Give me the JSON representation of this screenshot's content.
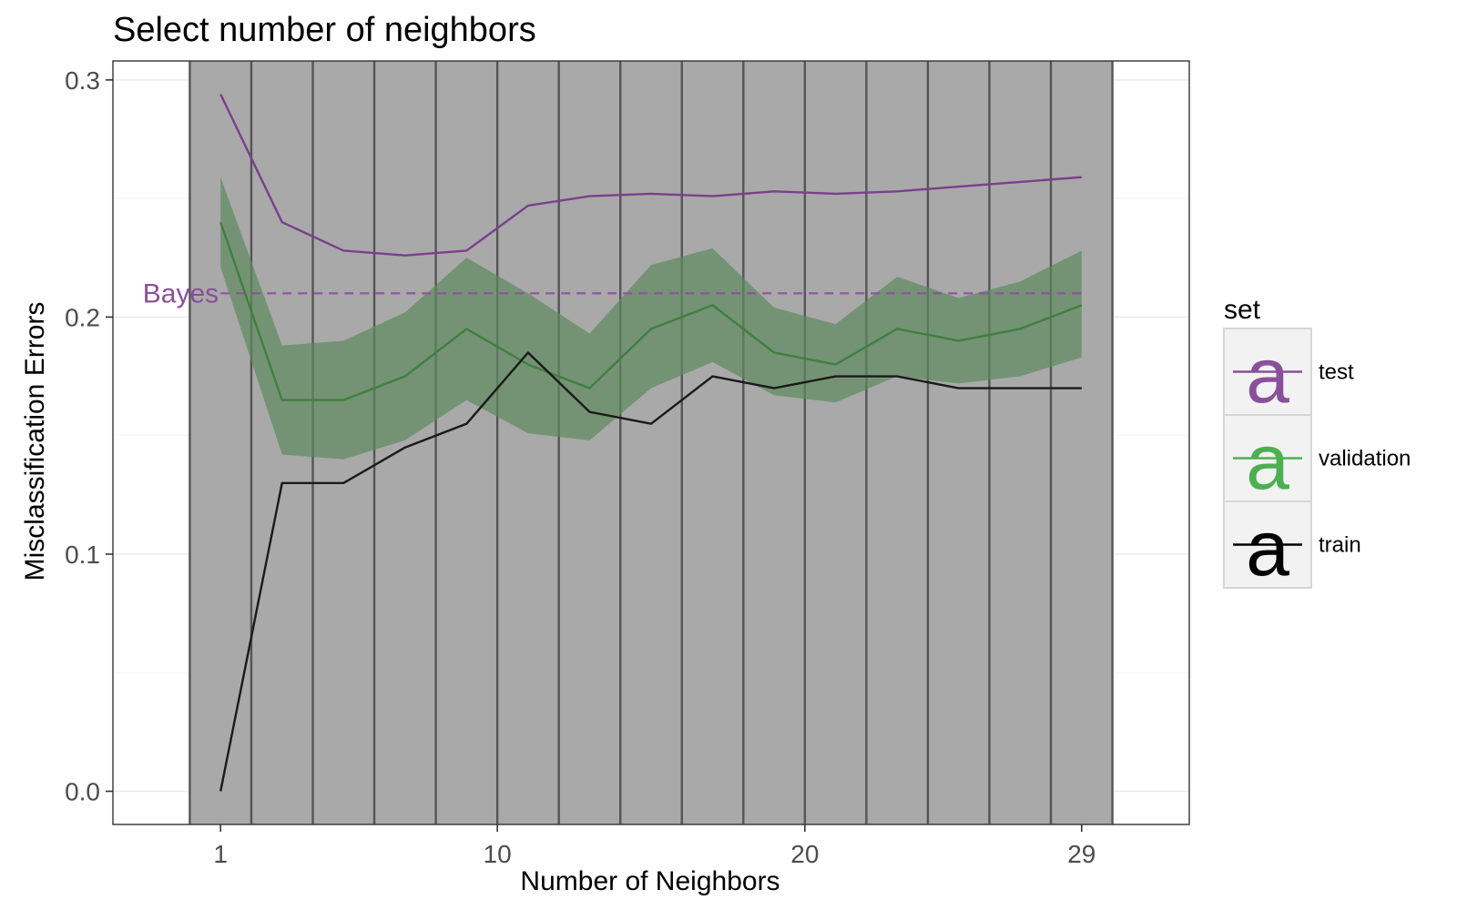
{
  "chart_data": {
    "type": "line",
    "title": "Select number of neighbors",
    "xlabel": "Number of Neighbors",
    "ylabel": "Misclassification Errors",
    "xlim": [
      -2.5,
      32.5
    ],
    "ylim": [
      -0.014,
      0.308
    ],
    "x_ticks": [
      1,
      10,
      20,
      29
    ],
    "y_ticks": [
      0.0,
      0.1,
      0.2,
      0.3
    ],
    "y_tick_labels": [
      "0.0",
      "0.1",
      "0.2",
      "0.3"
    ],
    "grid": true,
    "x": [
      1,
      3,
      5,
      7,
      9,
      11,
      13,
      15,
      17,
      19,
      21,
      23,
      25,
      27,
      29
    ],
    "series": [
      {
        "name": "test",
        "color": "#7b3f8c",
        "values": [
          0.294,
          0.24,
          0.228,
          0.226,
          0.228,
          0.247,
          0.251,
          0.252,
          0.251,
          0.253,
          0.252,
          0.253,
          0.255,
          0.257,
          0.259
        ]
      },
      {
        "name": "validation",
        "color": "#3f7f3f",
        "values": [
          0.24,
          0.165,
          0.165,
          0.175,
          0.195,
          0.18,
          0.17,
          0.195,
          0.205,
          0.185,
          0.18,
          0.195,
          0.19,
          0.195,
          0.205
        ],
        "band_low": [
          0.221,
          0.142,
          0.14,
          0.148,
          0.165,
          0.151,
          0.148,
          0.17,
          0.181,
          0.167,
          0.164,
          0.175,
          0.172,
          0.175,
          0.183
        ],
        "band_high": [
          0.259,
          0.188,
          0.19,
          0.202,
          0.225,
          0.21,
          0.193,
          0.222,
          0.229,
          0.204,
          0.197,
          0.217,
          0.208,
          0.215,
          0.228
        ]
      },
      {
        "name": "train",
        "color": "#1a1a1a",
        "values": [
          0.0,
          0.13,
          0.13,
          0.145,
          0.155,
          0.185,
          0.16,
          0.155,
          0.175,
          0.17,
          0.175,
          0.175,
          0.17,
          0.17,
          0.17
        ]
      }
    ],
    "reference_line": {
      "label": "Bayes",
      "value": 0.21,
      "color": "#8a4f9a",
      "style": "dashed"
    },
    "vertical_bands": {
      "x_edges": [
        0,
        2,
        4,
        6,
        8,
        10,
        12,
        14,
        16,
        18,
        20,
        22,
        24,
        26,
        28,
        30
      ],
      "fill": "#a9a9a9",
      "edge_color": "#555555"
    },
    "legend": {
      "title": "set",
      "placement": "right",
      "glyph": "a",
      "entries": [
        {
          "label": "test",
          "color": "#8a4f9a"
        },
        {
          "label": "validation",
          "color": "#4caf50"
        },
        {
          "label": "train",
          "color": "#000000"
        }
      ]
    }
  }
}
